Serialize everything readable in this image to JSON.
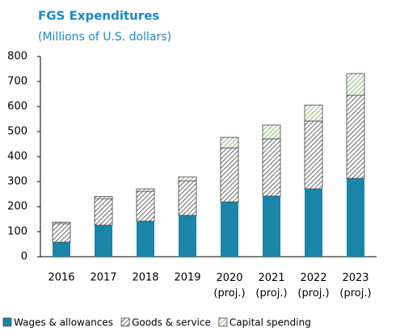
{
  "chart_data": {
    "type": "stacked_bar",
    "title": "FGS Expenditures",
    "subtitle": "(Millions of U.S. dollars)",
    "categories": [
      "2016",
      "2017",
      "2018",
      "2019",
      "2020 (proj.)",
      "2021 (proj.)",
      "2022 (proj.)",
      "2023 (proj.)"
    ],
    "series": [
      {
        "name": "Wages & allowances",
        "color": "#1b85a8",
        "fill": "solid",
        "values": [
          58,
          126,
          142,
          165,
          219,
          242,
          271,
          313
        ]
      },
      {
        "name": "Goods & service",
        "color": "#404040",
        "fill": "hatch",
        "values": [
          74,
          106,
          119,
          138,
          216,
          229,
          271,
          332
        ]
      },
      {
        "name": "Capital spending",
        "color": "#6aaa4a",
        "fill": "hatch",
        "values": [
          6,
          8,
          10,
          16,
          42,
          55,
          64,
          87
        ]
      }
    ],
    "ylim": [
      0,
      800
    ],
    "yticks": [
      0,
      100,
      200,
      300,
      400,
      500,
      600,
      700,
      800
    ],
    "legend": "bottom"
  }
}
